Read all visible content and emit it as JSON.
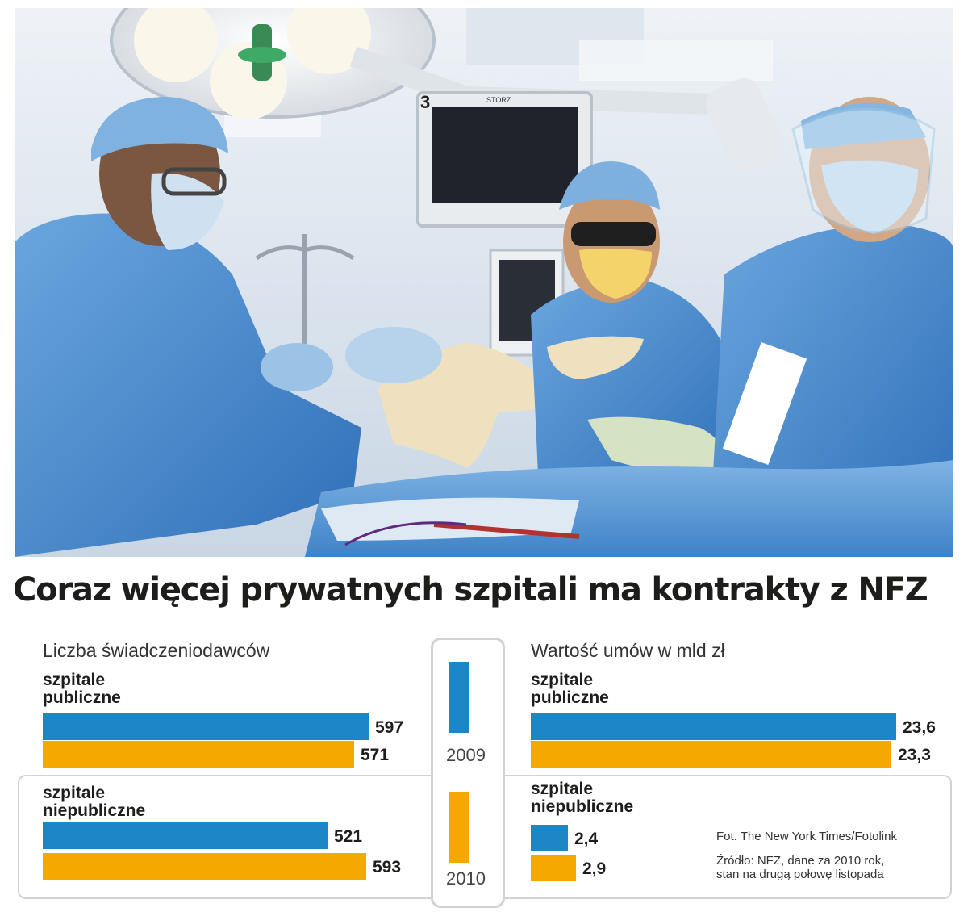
{
  "photo": {
    "credit": "Fot. The New York Times/Fotolink",
    "monitor_number": "3",
    "monitor_brand": "STORZ"
  },
  "title": "Coraz więcej prywatnych  szpitali ma kontrakty z NFZ",
  "left_panel": {
    "subtitle": "Liczba świadczeniodawców",
    "group_public": [
      "szpitale",
      "publiczne"
    ],
    "group_private": [
      "szpitale",
      "niepubliczne"
    ],
    "labels": {
      "public_2009": "597",
      "public_2010": "571",
      "private_2009": "521",
      "private_2010": "593"
    }
  },
  "right_panel": {
    "subtitle": "Wartość umów w mld zł",
    "group_public": [
      "szpitale",
      "publiczne"
    ],
    "group_private": [
      "szpitale",
      "niepubliczne"
    ],
    "labels": {
      "public_2009": "23,6",
      "public_2010": "23,3",
      "private_2009": "2,4",
      "private_2010": "2,9"
    }
  },
  "legend": {
    "year_2009": "2009",
    "year_2010": "2010"
  },
  "source": [
    "Źródło: NFZ, dane za 2010 rok,",
    "stan na drugą połowę listopada"
  ],
  "colors": {
    "blue": "#1b87c4",
    "orange": "#f5a800",
    "frame": "#d2d2d2"
  },
  "chart_data": [
    {
      "type": "bar",
      "orientation": "horizontal",
      "title": "Liczba świadczeniodawców",
      "categories": [
        "szpitale publiczne",
        "szpitale niepubliczne"
      ],
      "series": [
        {
          "name": "2009",
          "values": [
            597,
            521
          ]
        },
        {
          "name": "2010",
          "values": [
            571,
            593
          ]
        }
      ]
    },
    {
      "type": "bar",
      "orientation": "horizontal",
      "title": "Wartość umów w mld zł",
      "categories": [
        "szpitale publiczne",
        "szpitale niepubliczne"
      ],
      "series": [
        {
          "name": "2009",
          "values": [
            23.6,
            2.4
          ]
        },
        {
          "name": "2010",
          "values": [
            23.3,
            2.9
          ]
        }
      ]
    }
  ]
}
